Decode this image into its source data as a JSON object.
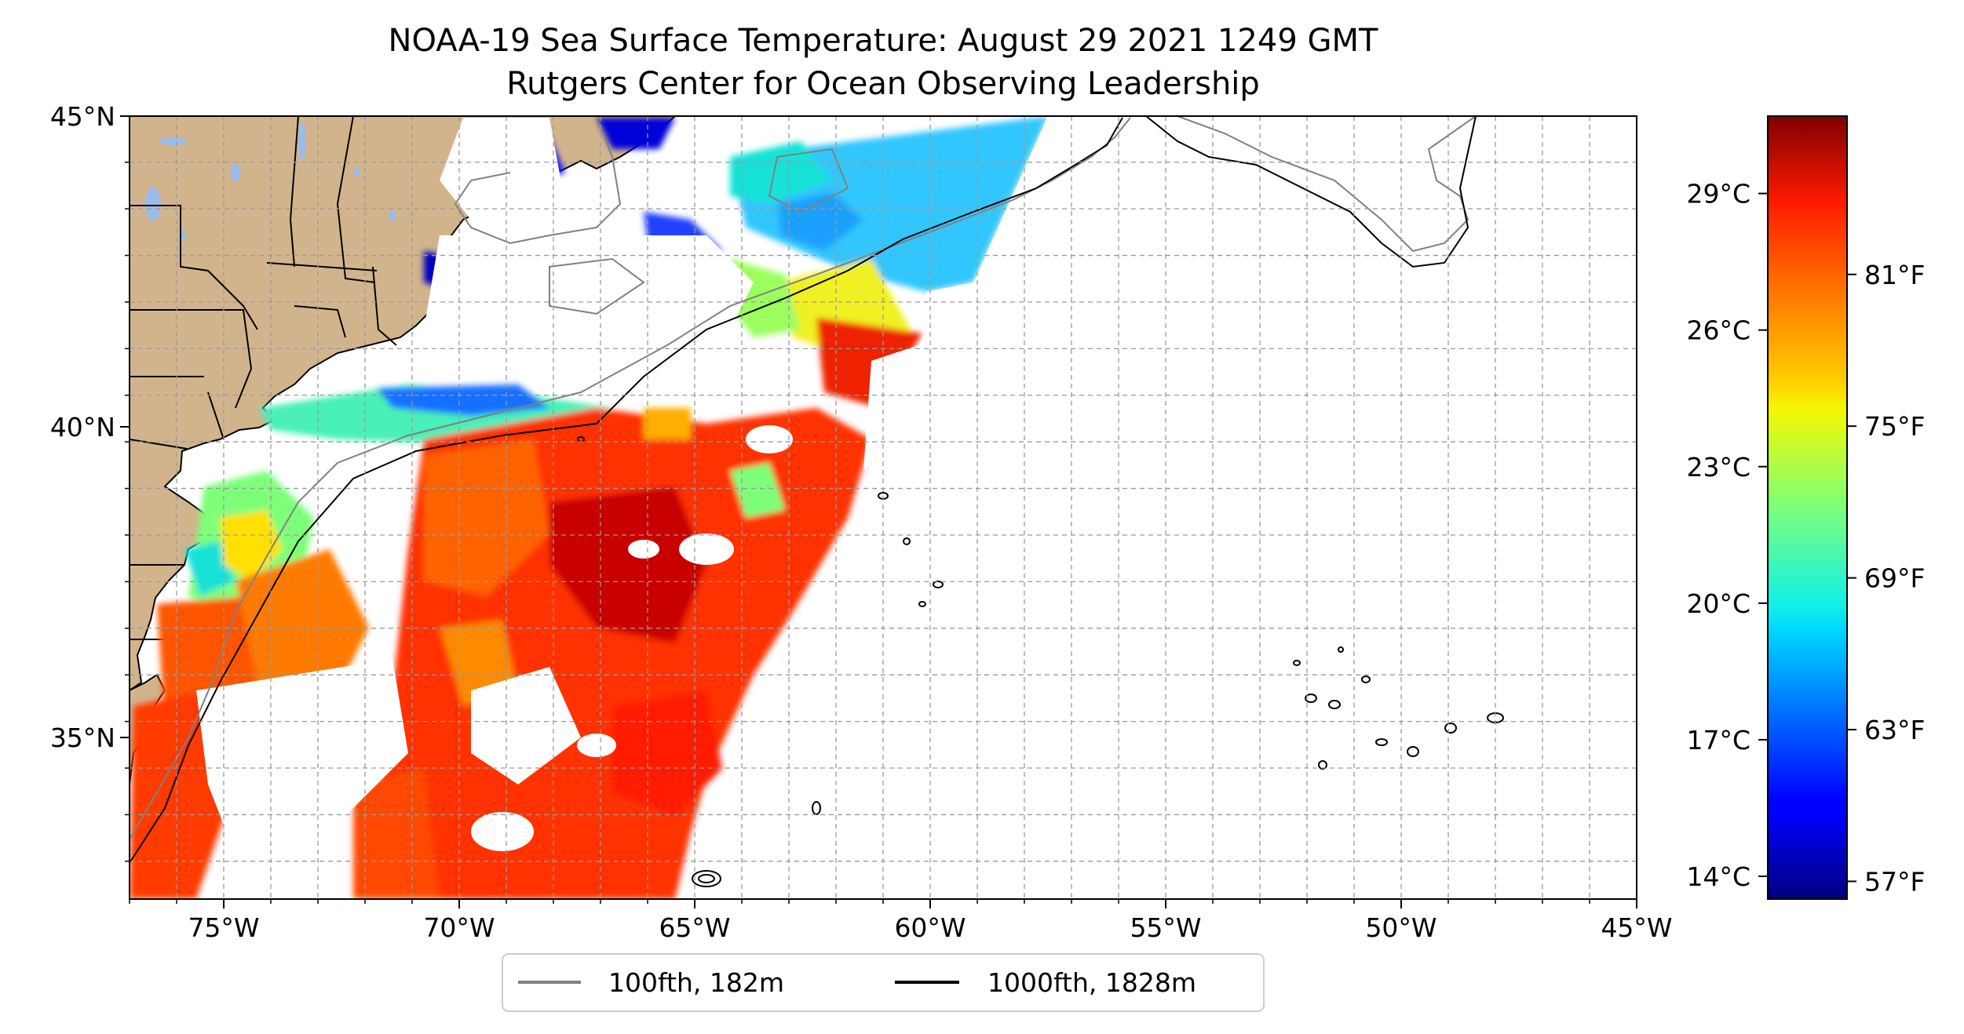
{
  "title": "NOAA-19 Sea Surface Temperature: August 29 2021 1249 GMT",
  "subtitle": "Rutgers Center for Ocean Observing Leadership",
  "map": {
    "lon_range": [
      -77,
      -45
    ],
    "lat_range": [
      32.4,
      45
    ],
    "x_ticks": [
      {
        "value": -75,
        "label": "75°W"
      },
      {
        "value": -70,
        "label": "70°W"
      },
      {
        "value": -65,
        "label": "65°W"
      },
      {
        "value": -60,
        "label": "60°W"
      },
      {
        "value": -55,
        "label": "55°W"
      },
      {
        "value": -50,
        "label": "50°W"
      },
      {
        "value": -45,
        "label": "45°W"
      }
    ],
    "y_ticks": [
      {
        "value": 45,
        "label": "45°N"
      },
      {
        "value": 40,
        "label": "40°N"
      },
      {
        "value": 35,
        "label": "35°N"
      }
    ],
    "grid": true,
    "grid_style": "dashed",
    "land_color": "#d2b48c",
    "lake_color": "#9cbce8"
  },
  "colorbar": {
    "colormap": "jet",
    "celsius_range": [
      13.5,
      30.7
    ],
    "celsius_ticks": [
      {
        "value": 14,
        "label": "14°C"
      },
      {
        "value": 17,
        "label": "17°C"
      },
      {
        "value": 20,
        "label": "20°C"
      },
      {
        "value": 23,
        "label": "23°C"
      },
      {
        "value": 26,
        "label": "26°C"
      },
      {
        "value": 29,
        "label": "29°C"
      }
    ],
    "fahrenheit_ticks": [
      {
        "value": 57,
        "label": "57°F"
      },
      {
        "value": 63,
        "label": "63°F"
      },
      {
        "value": 69,
        "label": "69°F"
      },
      {
        "value": 75,
        "label": "75°F"
      },
      {
        "value": 81,
        "label": "81°F"
      }
    ]
  },
  "legend": {
    "placement": "bottom-center",
    "items": [
      {
        "label": "100fth, 182m",
        "color": "#808080"
      },
      {
        "label": "1000fth, 1828m",
        "color": "#000000"
      }
    ]
  }
}
